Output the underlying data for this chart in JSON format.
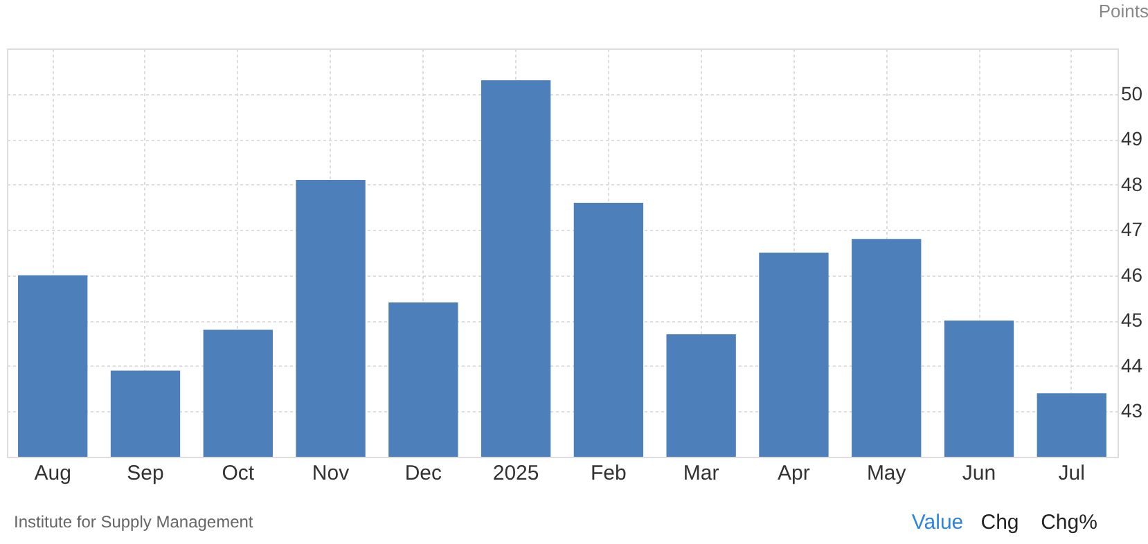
{
  "chart_data": {
    "type": "bar",
    "ylabel": "Points",
    "categories": [
      "Aug",
      "Sep",
      "Oct",
      "Nov",
      "Dec",
      "2025",
      "Feb",
      "Mar",
      "Apr",
      "May",
      "Jun",
      "Jul"
    ],
    "values": [
      46.0,
      43.9,
      44.8,
      48.1,
      45.4,
      50.3,
      47.6,
      44.7,
      46.5,
      46.8,
      45.0,
      43.4
    ],
    "color": "#4d7fbb",
    "ylim": [
      42,
      51
    ],
    "yticks": [
      43,
      44,
      45,
      46,
      47,
      48,
      49,
      50
    ],
    "grid": true,
    "annotations": [
      "Institute for Supply Management",
      "Value",
      "Chg",
      "Chg%"
    ]
  }
}
